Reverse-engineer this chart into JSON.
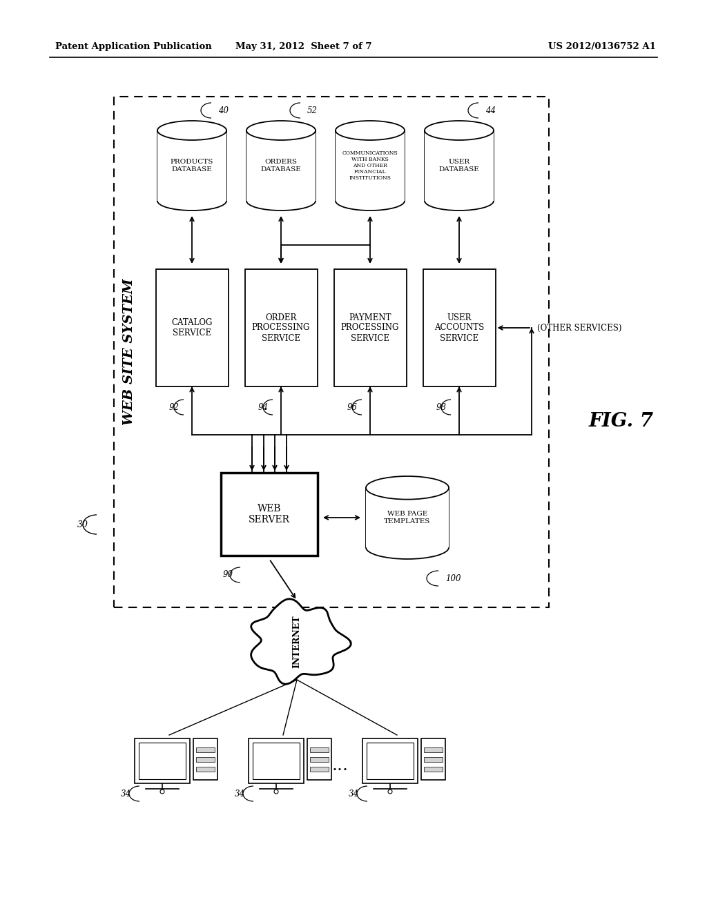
{
  "bg_color": "#ffffff",
  "header_left": "Patent Application Publication",
  "header_mid": "May 31, 2012  Sheet 7 of 7",
  "header_right": "US 2012/0136752 A1",
  "fig_label": "FIG. 7",
  "outer_box_label": "WEB SITE SYSTEM",
  "outer_box_ref": "30",
  "db_products": {
    "label": "PRODUCTS\nDATABASE",
    "ref": "40"
  },
  "db_orders": {
    "label": "ORDERS\nDATABASE",
    "ref": "52"
  },
  "db_comm": {
    "label": "COMMUNICATIONS WITH\nBANKS AND OTHER\nFINANCIAL INSTITUTIONS",
    "ref": ""
  },
  "db_user": {
    "label": "USER\nDATABASE",
    "ref": "44"
  },
  "svc_catalog": {
    "label": "CATALOG SERVICE",
    "ref": "92"
  },
  "svc_order": {
    "label": "ORDER PROCESSING\nSERVICE",
    "ref": "94"
  },
  "svc_payment": {
    "label": "PAYMENT PROCESSING\nSERVICE",
    "ref": "96"
  },
  "svc_user": {
    "label": "USER ACCOUNTS\nSERVICE",
    "ref": "98"
  },
  "other_services": "(OTHER SERVICES)",
  "web_server": {
    "label": "WEB\nSERVER",
    "ref": "90"
  },
  "web_page": {
    "label": "WEB PAGE\nTEMPLATES",
    "ref": "100"
  },
  "internet": "INTERNET",
  "computer_ref": "34"
}
